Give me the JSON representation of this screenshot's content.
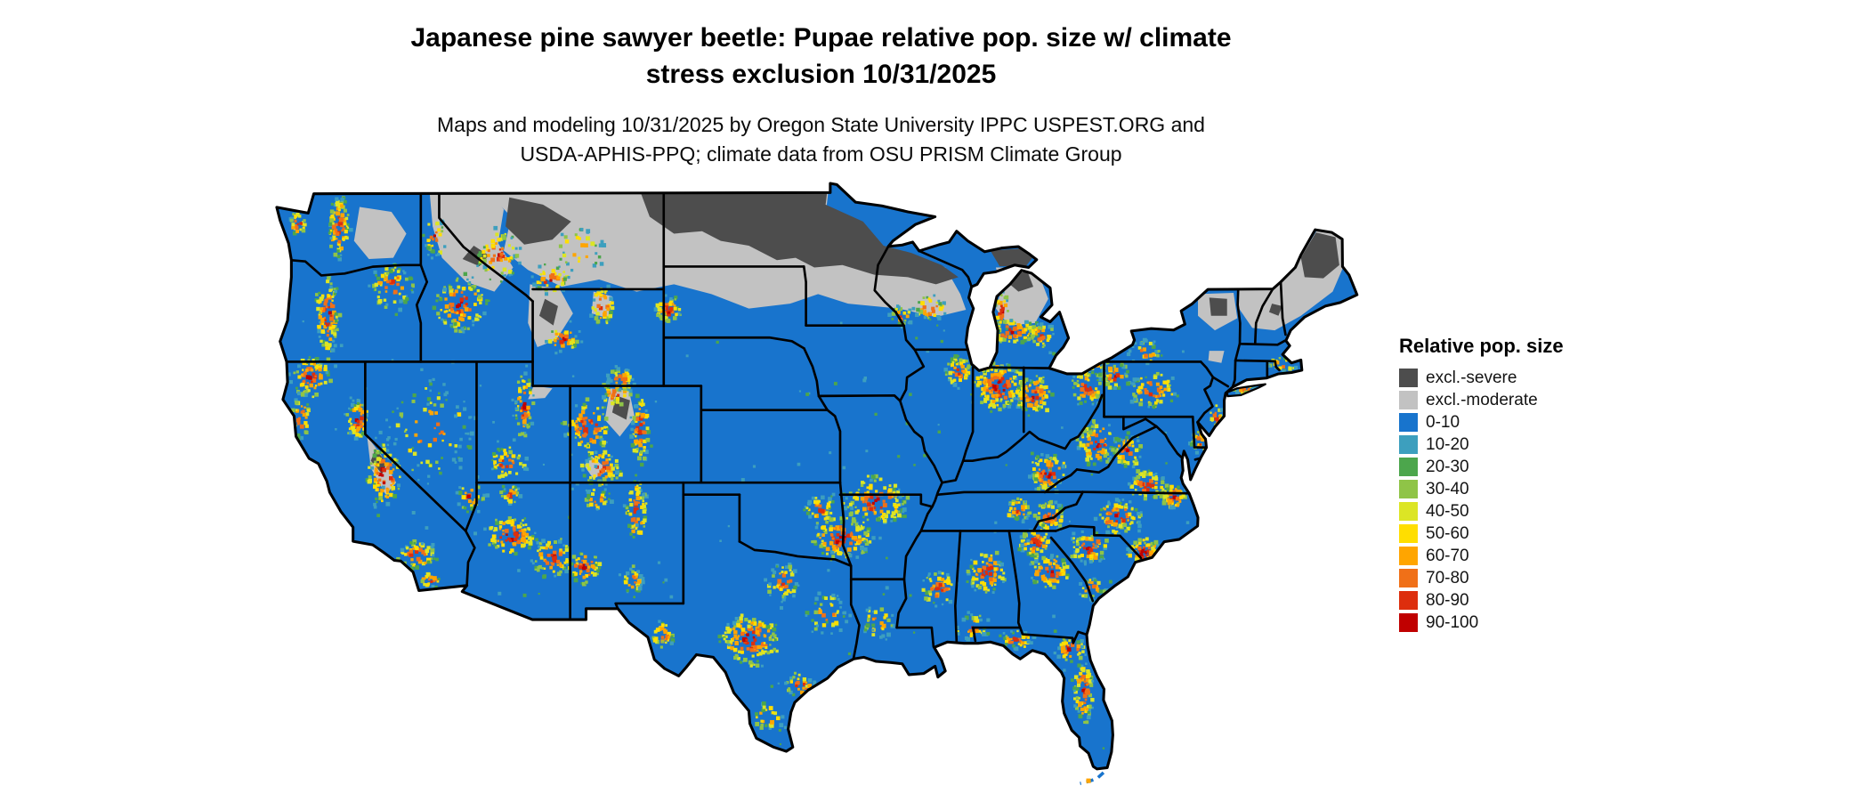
{
  "header": {
    "title_line1": "Japanese pine sawyer beetle: Pupae relative pop. size w/ climate",
    "title_line2": "stress exclusion 10/31/2025",
    "subtitle_line1": "Maps and modeling 10/31/2025 by Oregon State University IPPC USPEST.ORG and",
    "subtitle_line2": "USDA-APHIS-PPQ; climate data from OSU PRISM Climate Group"
  },
  "map": {
    "region": "Contiguous United States",
    "type": "raster choropleth"
  },
  "legend": {
    "title": "Relative pop. size",
    "items": [
      {
        "label": "excl.-severe",
        "color": "#4D4D4D"
      },
      {
        "label": "excl.-moderate",
        "color": "#C2C2C2"
      },
      {
        "label": "0-10",
        "color": "#1874CD"
      },
      {
        "label": "10-20",
        "color": "#3D9FBE"
      },
      {
        "label": "20-30",
        "color": "#4CA64C"
      },
      {
        "label": "30-40",
        "color": "#8FC447"
      },
      {
        "label": "40-50",
        "color": "#DCE525"
      },
      {
        "label": "50-60",
        "color": "#FFDE00"
      },
      {
        "label": "60-70",
        "color": "#FFA500"
      },
      {
        "label": "70-80",
        "color": "#F07018"
      },
      {
        "label": "80-90",
        "color": "#DD2E0D"
      },
      {
        "label": "90-100",
        "color": "#C00000"
      }
    ]
  }
}
